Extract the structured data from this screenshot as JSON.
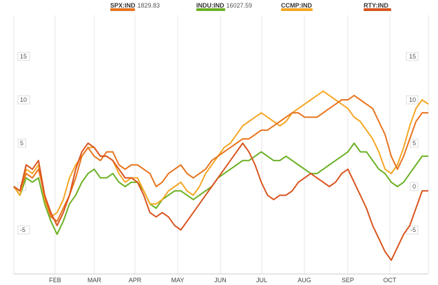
{
  "chart_data": {
    "type": "line",
    "title": "",
    "xlabel": "",
    "ylabel": "",
    "months": [
      "FEB",
      "MAR",
      "APR",
      "MAY",
      "JUN",
      "JUL",
      "AUG",
      "SEP",
      "OCT"
    ],
    "y_ticks": [
      "15",
      "10",
      "5",
      "0",
      "-5"
    ],
    "ylim": [
      -10,
      20
    ],
    "grid": true,
    "legend_position": "top",
    "series": [
      {
        "name": "SPX:IND",
        "legend_value": "1829.83",
        "color": "#e8731c",
        "values": [
          0,
          -0.5,
          1.5,
          1.0,
          2.0,
          -1.0,
          -3.5,
          -4.0,
          -2.5,
          -1.0,
          1.0,
          3.5,
          4.5,
          3.5,
          3.0,
          4.0,
          4.0,
          2.5,
          2.0,
          2.5,
          2.5,
          2.0,
          1.5,
          0.0,
          0.5,
          1.5,
          2.0,
          2.5,
          1.5,
          1.0,
          1.5,
          2.0,
          3.0,
          3.5,
          4.0,
          4.5,
          5.0,
          5.5,
          5.5,
          6.0,
          6.5,
          6.5,
          7.0,
          7.5,
          8.0,
          8.5,
          8.5,
          8.0,
          8.0,
          8.0,
          8.5,
          9.0,
          9.5,
          10.0,
          10.0,
          10.5,
          10.0,
          9.5,
          9.0,
          7.5,
          6.0,
          3.5,
          2.0,
          3.5,
          5.5,
          7.5,
          8.5,
          8.5
        ]
      },
      {
        "name": "INDU:IND",
        "legend_value": "16027.59",
        "color": "#6ab023",
        "values": [
          0,
          -1.0,
          1.0,
          0.5,
          1.0,
          -2.0,
          -4.0,
          -5.5,
          -4.0,
          -2.0,
          -1.0,
          0.5,
          1.5,
          2.0,
          1.0,
          1.0,
          1.5,
          0.5,
          0.0,
          0.5,
          0.5,
          -0.5,
          -2.0,
          -2.5,
          -1.5,
          -1.0,
          -0.5,
          -0.5,
          -1.0,
          -1.5,
          -1.0,
          -0.5,
          0.0,
          1.0,
          1.5,
          2.0,
          2.5,
          3.0,
          3.0,
          3.5,
          4.0,
          3.5,
          3.0,
          3.0,
          3.5,
          3.0,
          2.5,
          2.0,
          1.5,
          1.5,
          2.0,
          2.5,
          3.0,
          3.5,
          4.0,
          5.0,
          4.0,
          4.0,
          3.0,
          2.0,
          1.5,
          0.5,
          0.0,
          0.5,
          1.5,
          2.5,
          3.5,
          3.5
        ]
      },
      {
        "name": "CCMP:IND",
        "legend_value": "",
        "color": "#f5a623",
        "values": [
          0,
          -1.0,
          2.0,
          1.5,
          2.5,
          -1.5,
          -3.5,
          -3.0,
          -1.5,
          1.0,
          2.5,
          3.5,
          4.5,
          4.5,
          3.5,
          3.5,
          3.0,
          1.5,
          0.5,
          1.0,
          1.0,
          -0.5,
          -2.0,
          -2.0,
          -1.5,
          -0.5,
          0.0,
          0.5,
          -0.5,
          -1.0,
          0.0,
          1.5,
          2.5,
          3.5,
          4.5,
          5.0,
          6.0,
          7.0,
          7.5,
          8.0,
          8.5,
          8.0,
          7.5,
          7.0,
          7.5,
          8.5,
          9.0,
          9.5,
          10.0,
          10.5,
          11.0,
          10.5,
          10.0,
          9.5,
          9.0,
          8.0,
          7.5,
          6.5,
          5.5,
          4.0,
          2.0,
          1.5,
          2.5,
          4.5,
          7.0,
          9.0,
          10.0,
          9.5
        ]
      },
      {
        "name": "RTY:IND",
        "legend_value": "",
        "color": "#d9541e",
        "values": [
          0,
          -0.5,
          2.5,
          2.0,
          3.0,
          -1.0,
          -3.0,
          -4.5,
          -3.0,
          -1.0,
          2.0,
          4.0,
          5.0,
          4.5,
          3.5,
          3.5,
          3.0,
          2.0,
          1.0,
          1.0,
          0.5,
          -1.0,
          -3.0,
          -3.5,
          -3.0,
          -3.5,
          -4.5,
          -5.0,
          -4.0,
          -3.0,
          -2.0,
          -1.0,
          0.0,
          1.0,
          2.0,
          3.0,
          4.0,
          5.0,
          4.0,
          2.5,
          0.5,
          -1.0,
          -1.5,
          -1.0,
          -1.0,
          -0.5,
          0.5,
          1.0,
          1.5,
          1.0,
          0.5,
          0.0,
          0.5,
          1.5,
          2.0,
          0.5,
          -1.0,
          -2.5,
          -4.5,
          -6.0,
          -7.5,
          -8.5,
          -7.0,
          -5.5,
          -4.5,
          -2.5,
          -0.5,
          -0.5
        ]
      }
    ]
  }
}
